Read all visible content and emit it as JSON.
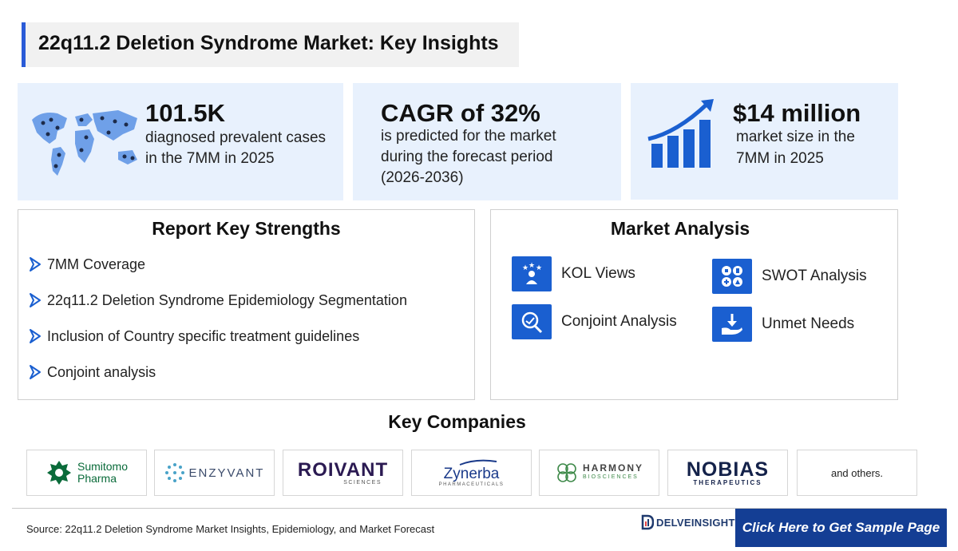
{
  "title": "22q11.2 Deletion Syndrome Market: Key Insights",
  "stats": [
    {
      "big": "101.5K",
      "lines": [
        "diagnosed prevalent cases",
        "in the 7MM in 2025"
      ],
      "icon": "world-map-icon"
    },
    {
      "big": "CAGR of 32%",
      "lines": [
        "is predicted for the market",
        "during the forecast period",
        "(2026-2036)"
      ]
    },
    {
      "big": "$14 million",
      "lines": [
        "market size in the",
        "7MM in 2025"
      ],
      "icon": "growth-chart-icon"
    }
  ],
  "strengths": {
    "title": "Report Key Strengths",
    "items": [
      "7MM Coverage",
      "22q11.2 Deletion Syndrome Epidemiology Segmentation",
      "Inclusion of Country specific treatment guidelines",
      "Conjoint analysis"
    ]
  },
  "market_analysis": {
    "title": "Market Analysis",
    "items": [
      {
        "label": "KOL Views",
        "icon": "kol-views-icon"
      },
      {
        "label": "SWOT Analysis",
        "icon": "swot-icon"
      },
      {
        "label": "Conjoint Analysis",
        "icon": "conjoint-analysis-icon"
      },
      {
        "label": "Unmet Needs",
        "icon": "unmet-needs-icon"
      }
    ]
  },
  "companies": {
    "title": "Key Companies",
    "sumitomo": {
      "line1": "Sumitomo",
      "line2": "Pharma"
    },
    "enzyvant": "ENZYVANT",
    "roivant": {
      "name": "ROIVANT",
      "sub": "SCIENCES"
    },
    "zynerba": {
      "name": "Zynerba",
      "sub": "PHARMACEUTICALS"
    },
    "harmony": {
      "name": "HARMONY",
      "sub": "BIOSCIENCES"
    },
    "nobias": {
      "name": "NOBIAS",
      "sub": "THERAPEUTICS"
    },
    "others": "and others."
  },
  "footer": {
    "source": "Source: 22q11.2 Deletion Syndrome Market Insights, Epidemiology, and Market Forecast",
    "brand": "DELVEINSIGHT",
    "cta": "Click Here to Get Sample Page"
  },
  "colors": {
    "accent": "#2a5bd7",
    "icon_blue": "#1a5fd0",
    "card_bg": "#e8f1fd",
    "cta_bg": "#143e94"
  }
}
